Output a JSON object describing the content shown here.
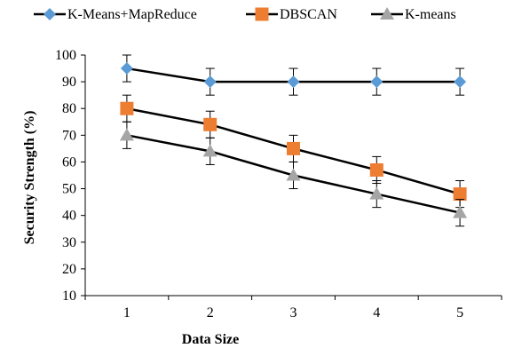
{
  "chart_data": {
    "type": "line",
    "title": "",
    "xlabel": "Data Size",
    "ylabel": "Security Strength (%)",
    "x": [
      1,
      2,
      3,
      4,
      5
    ],
    "xlim": [
      0.5,
      5.5
    ],
    "ylim": [
      10,
      100
    ],
    "yticks": [
      10,
      20,
      30,
      40,
      50,
      60,
      70,
      80,
      90,
      100
    ],
    "grid": false,
    "legend_position": "top",
    "error_bar": 5,
    "series": [
      {
        "name": "K-Means+MapReduce",
        "values": [
          95,
          90,
          90,
          90,
          90
        ],
        "color": "#5B9BD5",
        "marker": "diamond"
      },
      {
        "name": "DBSCAN",
        "values": [
          80,
          74,
          65,
          57,
          48
        ],
        "color": "#ED7D31",
        "marker": "square"
      },
      {
        "name": "K-means",
        "values": [
          70,
          64,
          55,
          48,
          41
        ],
        "color": "#A5A5A5",
        "marker": "triangle"
      }
    ]
  }
}
